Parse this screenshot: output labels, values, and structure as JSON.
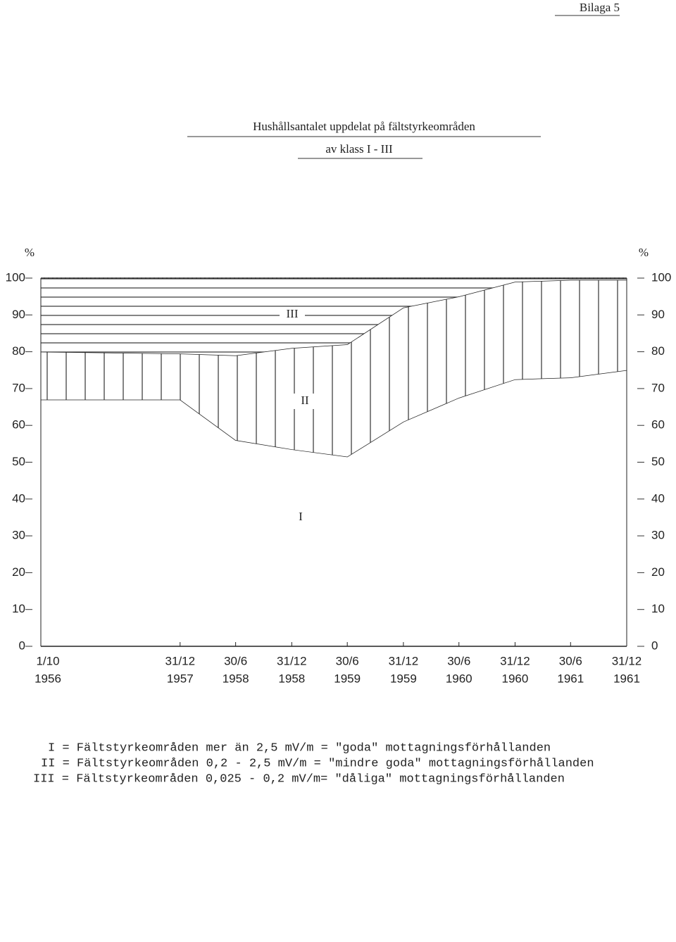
{
  "header": {
    "appendix": "Bilaga 5",
    "title": "Hushållsantalet uppdelat på fältstyrkeområden",
    "subtitle": "av klass I - III"
  },
  "chart_data": {
    "type": "stacked_area",
    "ylabel": "%",
    "y2label": "%",
    "x": [
      "1/10",
      "31/12",
      "30/6",
      "31/12",
      "30/6",
      "31/12",
      "30/6",
      "31/12",
      "30/6",
      "31/12"
    ],
    "x_years": [
      "1956",
      "1957",
      "1958",
      "1958",
      "1959",
      "1959",
      "1960",
      "1960",
      "1961",
      "1961"
    ],
    "series": [
      {
        "name": "I",
        "color": "#ffffff",
        "hatch": "none",
        "values": [
          67,
          67,
          56,
          53.5,
          51.5,
          61,
          67.5,
          72.5,
          73,
          75
        ]
      },
      {
        "name": "II",
        "color": "#ffffff",
        "hatch": "vertical",
        "values": [
          13,
          12.5,
          23,
          27.5,
          30.5,
          31,
          27.5,
          26.5,
          26.5,
          24.5
        ]
      },
      {
        "name": "III",
        "color": "#ffffff",
        "hatch": "horizontal",
        "values": [
          20,
          20.5,
          21,
          19,
          18,
          8,
          5,
          1,
          0.5,
          0.5
        ]
      }
    ],
    "ylim": [
      0,
      100
    ],
    "yticks": [
      0,
      10,
      20,
      30,
      40,
      50,
      60,
      70,
      80,
      90,
      100
    ],
    "y2lim": [
      0,
      100
    ],
    "y2ticks": [
      0,
      10,
      20,
      30,
      40,
      50,
      60,
      70,
      80,
      90,
      100
    ]
  },
  "legend_lines": [
    "I = Fältstyrkeområden mer än 2,5 mV/m = \"goda\" mottagningsförhållanden",
    "II = Fältstyrkeområden 0,2 - 2,5 mV/m = \"mindre goda\" mottagningsförhållanden",
    "III = Fältstyrkeområden 0,025 - 0,2 mV/m= \"dåliga\" mottagningsförhållanden"
  ]
}
